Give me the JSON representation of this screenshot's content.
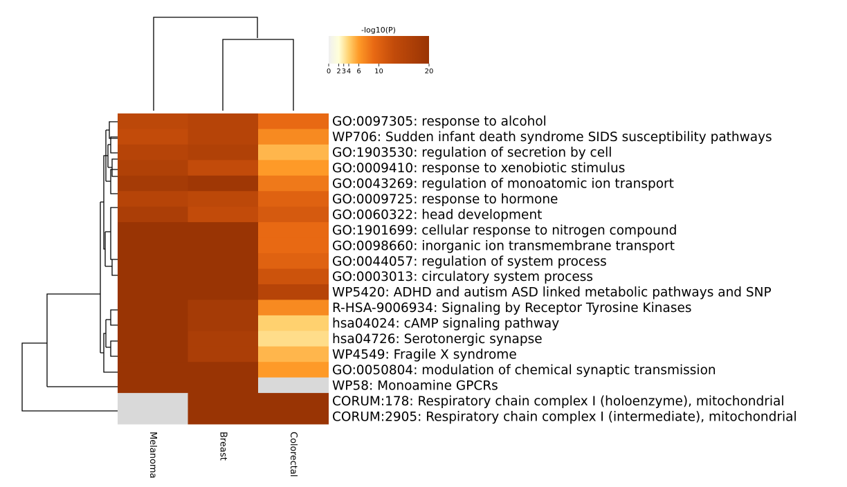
{
  "chart_data": {
    "type": "heatmap",
    "columns": [
      "Melanoma",
      "Breast",
      "Colorectal"
    ],
    "rows": [
      "GO:0097305: response to alcohol",
      "WP706: Sudden infant death syndrome SIDS susceptibility pathways",
      "GO:1903530: regulation of secretion by cell",
      "GO:0009410: response to xenobiotic stimulus",
      "GO:0043269: regulation of monoatomic ion transport",
      "GO:0009725: response to hormone",
      "GO:0060322: head development",
      "GO:1901699: cellular response to nitrogen compound",
      "GO:0098660: inorganic ion transmembrane transport",
      "GO:0044057: regulation of system process",
      "GO:0003013: circulatory system process",
      "WP5420: ADHD and autism ASD linked metabolic pathways and SNP",
      "R-HSA-9006934: Signaling by Receptor Tyrosine Kinases",
      "hsa04024: cAMP signaling pathway",
      "hsa04726: Serotonergic synapse",
      "WP4549: Fragile X syndrome",
      "GO:0050804: modulation of chemical synaptic transmission",
      "WP58: Monoamine GPCRs",
      "CORUM:178: Respiratory chain complex I (holoenzyme), mitochondrial",
      "CORUM:2905: Respiratory chain complex I (intermediate), mitochondrial"
    ],
    "values": [
      [
        14,
        15,
        9
      ],
      [
        13,
        15,
        7
      ],
      [
        15,
        16,
        5
      ],
      [
        16,
        13,
        6
      ],
      [
        18,
        19,
        8
      ],
      [
        15,
        14,
        10
      ],
      [
        17,
        13,
        11
      ],
      [
        20,
        20,
        9
      ],
      [
        20,
        20,
        9
      ],
      [
        20,
        20,
        10
      ],
      [
        20,
        20,
        12
      ],
      [
        20,
        20,
        15
      ],
      [
        20,
        18,
        7
      ],
      [
        20,
        18,
        4
      ],
      [
        20,
        17,
        3.5
      ],
      [
        20,
        17,
        5
      ],
      [
        20,
        20,
        6
      ],
      [
        20,
        20,
        null
      ],
      [
        null,
        20,
        20
      ],
      [
        null,
        20,
        20
      ]
    ],
    "colorbar": {
      "title": "-log10(P)",
      "ticks": [
        0,
        2,
        3,
        4,
        6,
        10,
        20
      ],
      "tick_labels": [
        "0",
        "2",
        "3",
        "4",
        "6",
        "10",
        "20"
      ],
      "range": [
        0,
        20
      ],
      "missing_color": "#d9d9d9"
    },
    "colors": {
      "stops": [
        "#f0f0f0",
        "#ffffd9",
        "#ffd16f",
        "#fe9a28",
        "#e86913",
        "#c24b0a",
        "#993404"
      ]
    }
  }
}
